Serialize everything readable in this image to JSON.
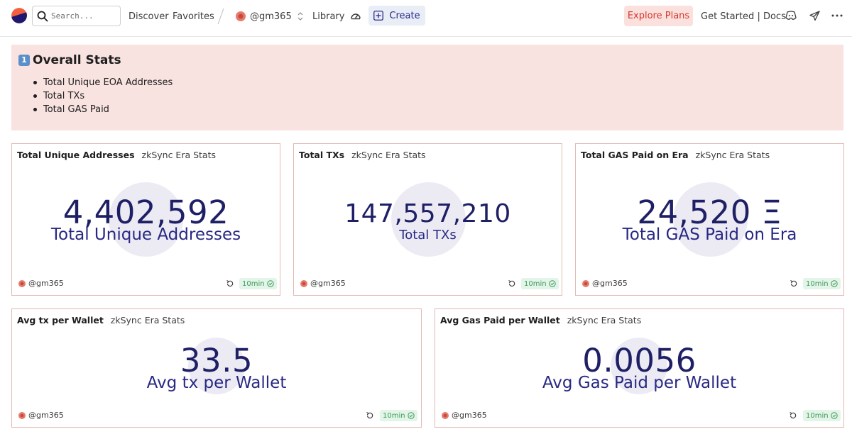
{
  "nav": {
    "search_placeholder": "Search...",
    "discover": "Discover",
    "favorites": "Favorites",
    "user": "@gm365",
    "library": "Library",
    "create": "Create",
    "explore_plans": "Explore Plans",
    "get_started": "Get Started | Docs"
  },
  "colors": {
    "accent_navy": "#1f1f66",
    "explore_bg": "#fbe1dd",
    "explore_text": "#d5372f",
    "notice_bg": "#f9e3e1",
    "badge_green": "#3d9a5a"
  },
  "notice": {
    "keycap": "1",
    "title": "Overall Stats",
    "items": [
      "Total Unique EOA Addresses",
      "Total TXs",
      "Total GAS Paid"
    ]
  },
  "cards": [
    {
      "title": "Total Unique Addresses",
      "subtitle": "zkSync Era Stats",
      "value": "4,402,592",
      "label": "Total Unique Addresses",
      "user": "@gm365",
      "refresh": "10min"
    },
    {
      "title": "Total TXs",
      "subtitle": "zkSync Era Stats",
      "value": "147,557,210",
      "label": "Total TXs",
      "user": "@gm365",
      "refresh": "10min"
    },
    {
      "title": "Total GAS Paid on Era",
      "subtitle": "zkSync Era Stats",
      "value": "24,520 Ξ",
      "label": "Total GAS Paid on Era",
      "user": "@gm365",
      "refresh": "10min"
    },
    {
      "title": "Avg tx per Wallet",
      "subtitle": "zkSync Era Stats",
      "value": "33.5",
      "label": "Avg tx per Wallet",
      "user": "@gm365",
      "refresh": "10min"
    },
    {
      "title": "Avg Gas Paid per Wallet",
      "subtitle": "zkSync Era Stats",
      "value": "0.0056",
      "label": "Avg Gas Paid per Wallet",
      "user": "@gm365",
      "refresh": "10min"
    }
  ]
}
